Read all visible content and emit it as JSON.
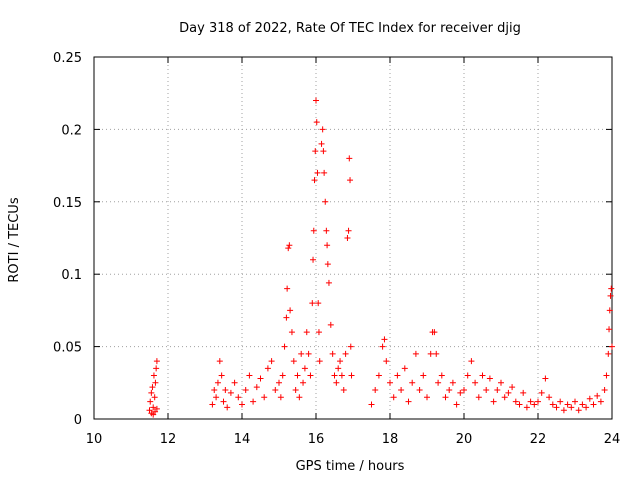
{
  "chart_data": {
    "type": "scatter",
    "title": "Day 318 of 2022, Rate Of TEC Index for receiver djig",
    "xlabel": "GPS time / hours",
    "ylabel": "ROTI / TECUs",
    "xlim": [
      10,
      24
    ],
    "ylim": [
      0,
      0.25
    ],
    "xticks": [
      10,
      12,
      14,
      16,
      18,
      20,
      22,
      24
    ],
    "yticks": [
      0,
      0.05,
      0.1,
      0.15,
      0.2,
      0.25
    ],
    "xtick_labels": [
      "10",
      "12",
      "14",
      "16",
      "18",
      "20",
      "22",
      "24"
    ],
    "ytick_labels": [
      "0",
      "0.05",
      "0.1",
      "0.15",
      "0.2",
      "0.25"
    ],
    "grid": true,
    "marker": "+",
    "marker_color": "#ff0000",
    "series": [
      {
        "name": "ROTI",
        "points": [
          [
            11.5,
            0.006
          ],
          [
            11.52,
            0.012
          ],
          [
            11.55,
            0.018
          ],
          [
            11.58,
            0.022
          ],
          [
            11.6,
            0.008
          ],
          [
            11.62,
            0.03
          ],
          [
            11.64,
            0.015
          ],
          [
            11.66,
            0.025
          ],
          [
            11.68,
            0.035
          ],
          [
            11.7,
            0.04
          ],
          [
            11.55,
            0.004
          ],
          [
            11.6,
            0.003
          ],
          [
            11.65,
            0.005
          ],
          [
            11.7,
            0.007
          ],
          [
            13.2,
            0.01
          ],
          [
            13.25,
            0.02
          ],
          [
            13.3,
            0.015
          ],
          [
            13.35,
            0.025
          ],
          [
            13.4,
            0.04
          ],
          [
            13.45,
            0.03
          ],
          [
            13.5,
            0.012
          ],
          [
            13.55,
            0.02
          ],
          [
            13.6,
            0.008
          ],
          [
            13.7,
            0.018
          ],
          [
            13.8,
            0.025
          ],
          [
            13.9,
            0.015
          ],
          [
            14.0,
            0.01
          ],
          [
            14.1,
            0.02
          ],
          [
            14.2,
            0.03
          ],
          [
            14.3,
            0.012
          ],
          [
            14.4,
            0.022
          ],
          [
            14.5,
            0.028
          ],
          [
            14.6,
            0.015
          ],
          [
            14.7,
            0.035
          ],
          [
            14.8,
            0.04
          ],
          [
            14.9,
            0.02
          ],
          [
            15.0,
            0.025
          ],
          [
            15.05,
            0.015
          ],
          [
            15.1,
            0.03
          ],
          [
            15.15,
            0.05
          ],
          [
            15.2,
            0.07
          ],
          [
            15.22,
            0.09
          ],
          [
            15.25,
            0.118
          ],
          [
            15.28,
            0.12
          ],
          [
            15.3,
            0.075
          ],
          [
            15.35,
            0.06
          ],
          [
            15.4,
            0.04
          ],
          [
            15.45,
            0.02
          ],
          [
            15.5,
            0.03
          ],
          [
            15.55,
            0.015
          ],
          [
            15.6,
            0.045
          ],
          [
            15.65,
            0.025
          ],
          [
            15.7,
            0.035
          ],
          [
            15.75,
            0.06
          ],
          [
            15.8,
            0.045
          ],
          [
            15.85,
            0.03
          ],
          [
            15.9,
            0.08
          ],
          [
            15.92,
            0.11
          ],
          [
            15.94,
            0.13
          ],
          [
            15.96,
            0.165
          ],
          [
            15.98,
            0.185
          ],
          [
            16.0,
            0.22
          ],
          [
            16.02,
            0.205
          ],
          [
            16.04,
            0.17
          ],
          [
            16.06,
            0.08
          ],
          [
            16.08,
            0.06
          ],
          [
            16.1,
            0.04
          ],
          [
            16.15,
            0.19
          ],
          [
            16.18,
            0.2
          ],
          [
            16.2,
            0.185
          ],
          [
            16.22,
            0.17
          ],
          [
            16.25,
            0.15
          ],
          [
            16.28,
            0.13
          ],
          [
            16.3,
            0.12
          ],
          [
            16.32,
            0.107
          ],
          [
            16.35,
            0.094
          ],
          [
            16.4,
            0.065
          ],
          [
            16.45,
            0.045
          ],
          [
            16.5,
            0.03
          ],
          [
            16.55,
            0.025
          ],
          [
            16.6,
            0.035
          ],
          [
            16.65,
            0.04
          ],
          [
            16.7,
            0.03
          ],
          [
            16.75,
            0.02
          ],
          [
            16.8,
            0.045
          ],
          [
            16.85,
            0.125
          ],
          [
            16.88,
            0.13
          ],
          [
            16.9,
            0.18
          ],
          [
            16.92,
            0.165
          ],
          [
            16.94,
            0.05
          ],
          [
            16.96,
            0.03
          ],
          [
            17.5,
            0.01
          ],
          [
            17.6,
            0.02
          ],
          [
            17.7,
            0.03
          ],
          [
            17.8,
            0.05
          ],
          [
            17.85,
            0.055
          ],
          [
            17.9,
            0.04
          ],
          [
            18.0,
            0.025
          ],
          [
            18.1,
            0.015
          ],
          [
            18.2,
            0.03
          ],
          [
            18.3,
            0.02
          ],
          [
            18.4,
            0.035
          ],
          [
            18.5,
            0.012
          ],
          [
            18.6,
            0.025
          ],
          [
            18.7,
            0.045
          ],
          [
            18.8,
            0.02
          ],
          [
            18.9,
            0.03
          ],
          [
            19.0,
            0.015
          ],
          [
            19.1,
            0.045
          ],
          [
            19.15,
            0.06
          ],
          [
            19.2,
            0.06
          ],
          [
            19.25,
            0.045
          ],
          [
            19.3,
            0.025
          ],
          [
            19.4,
            0.03
          ],
          [
            19.5,
            0.015
          ],
          [
            19.6,
            0.02
          ],
          [
            19.7,
            0.025
          ],
          [
            19.8,
            0.01
          ],
          [
            19.9,
            0.018
          ],
          [
            20.0,
            0.02
          ],
          [
            20.1,
            0.03
          ],
          [
            20.2,
            0.04
          ],
          [
            20.3,
            0.025
          ],
          [
            20.4,
            0.015
          ],
          [
            20.5,
            0.03
          ],
          [
            20.6,
            0.02
          ],
          [
            20.7,
            0.028
          ],
          [
            20.8,
            0.012
          ],
          [
            20.9,
            0.02
          ],
          [
            21.0,
            0.025
          ],
          [
            21.1,
            0.015
          ],
          [
            21.2,
            0.018
          ],
          [
            21.3,
            0.022
          ],
          [
            21.4,
            0.012
          ],
          [
            21.5,
            0.01
          ],
          [
            21.6,
            0.018
          ],
          [
            21.7,
            0.008
          ],
          [
            21.8,
            0.012
          ],
          [
            21.9,
            0.01
          ],
          [
            22.0,
            0.012
          ],
          [
            22.1,
            0.018
          ],
          [
            22.2,
            0.028
          ],
          [
            22.3,
            0.015
          ],
          [
            22.4,
            0.01
          ],
          [
            22.5,
            0.008
          ],
          [
            22.6,
            0.012
          ],
          [
            22.7,
            0.006
          ],
          [
            22.8,
            0.01
          ],
          [
            22.9,
            0.008
          ],
          [
            23.0,
            0.012
          ],
          [
            23.1,
            0.006
          ],
          [
            23.2,
            0.01
          ],
          [
            23.3,
            0.008
          ],
          [
            23.4,
            0.014
          ],
          [
            23.5,
            0.01
          ],
          [
            23.6,
            0.016
          ],
          [
            23.7,
            0.012
          ],
          [
            23.8,
            0.02
          ],
          [
            23.85,
            0.03
          ],
          [
            23.9,
            0.045
          ],
          [
            23.92,
            0.062
          ],
          [
            23.94,
            0.075
          ],
          [
            23.96,
            0.085
          ],
          [
            23.98,
            0.09
          ],
          [
            24.0,
            0.05
          ]
        ]
      }
    ]
  }
}
